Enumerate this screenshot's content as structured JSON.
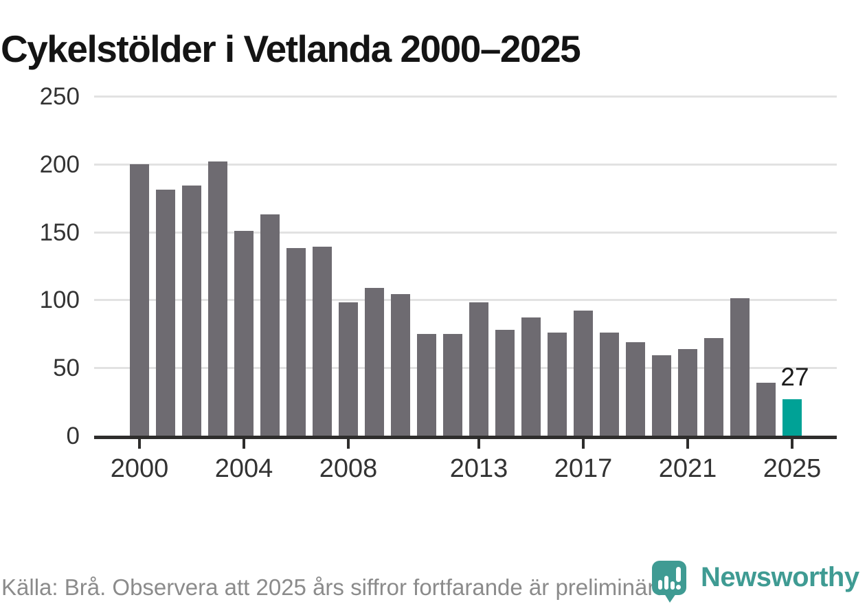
{
  "chart_data": {
    "type": "bar",
    "title": "Cykelstölder i Vetlanda 2000–2025",
    "xlabel": "",
    "ylabel": "",
    "x": [
      2000,
      2001,
      2002,
      2003,
      2004,
      2005,
      2006,
      2007,
      2008,
      2009,
      2010,
      2011,
      2012,
      2013,
      2014,
      2015,
      2016,
      2017,
      2018,
      2019,
      2020,
      2021,
      2022,
      2023,
      2024,
      2025
    ],
    "values": [
      200,
      181,
      184,
      202,
      151,
      163,
      138,
      139,
      98,
      109,
      104,
      75,
      75,
      98,
      78,
      87,
      76,
      92,
      76,
      69,
      59,
      64,
      72,
      101,
      39,
      27
    ],
    "ylim": [
      0,
      250
    ],
    "yticks": [
      0,
      50,
      100,
      150,
      200,
      250
    ],
    "xticks": [
      2000,
      2004,
      2008,
      2013,
      2017,
      2021,
      2025
    ],
    "grid": "horizontal",
    "legend": "none",
    "bar_color": "#6e6b71",
    "highlight_year": 2025,
    "highlight_color": "#00a296",
    "highlight_value_label": "27"
  },
  "footer": {
    "source_text": "Källa: Brå. Observera att 2025 års siffror fortfarande är preliminära.",
    "brand_name": "Newsworthy",
    "brand_color": "#3f9b93"
  }
}
